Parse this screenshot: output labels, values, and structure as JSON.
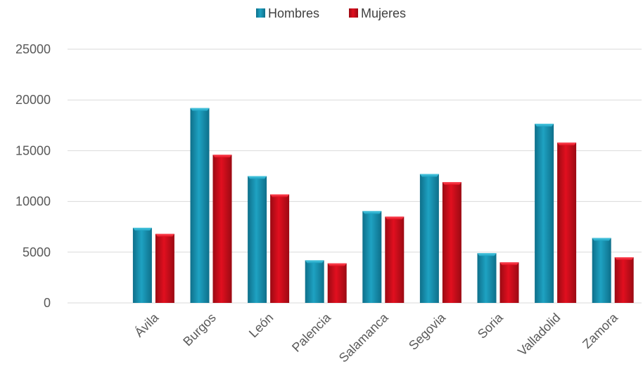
{
  "chart_data": {
    "type": "bar",
    "categories": [
      "Ávila",
      "Burgos",
      "León",
      "Palencia",
      "Salamanca",
      "Segovia",
      "Soria",
      "Valladolid",
      "Zamora"
    ],
    "series": [
      {
        "name": "Hombres",
        "values": [
          7400,
          19200,
          12500,
          4200,
          9050,
          12700,
          4900,
          17650,
          6400
        ]
      },
      {
        "name": "Mujeres",
        "values": [
          6800,
          14600,
          10700,
          3900,
          8500,
          11900,
          4000,
          15800,
          4500
        ]
      }
    ],
    "title": "",
    "xlabel": "",
    "ylabel": "",
    "ylim": [
      0,
      25000
    ],
    "yticks": [
      0,
      5000,
      10000,
      15000,
      20000,
      25000
    ],
    "grid": true,
    "legend_position": "top-center",
    "colors": {
      "Hombres": {
        "light": "#4ec9e1",
        "mid": "#1ea2c2",
        "dark": "#0e6f8a"
      },
      "Mujeres": {
        "light": "#ff4d5a",
        "mid": "#e10f1f",
        "dark": "#9b0a13"
      }
    }
  }
}
